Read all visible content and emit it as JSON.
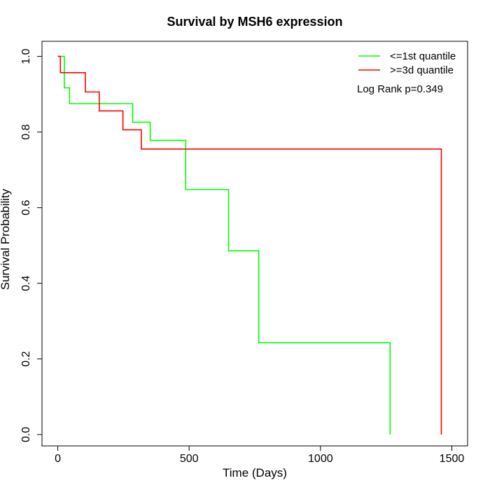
{
  "chart_data": {
    "type": "line",
    "title": "Survival by MSH6 expression",
    "xlabel": "Time (Days)",
    "ylabel": "Survival Probability",
    "xlim": [
      -60,
      1560
    ],
    "ylim": [
      -0.03,
      1.04
    ],
    "xticks": [
      0,
      500,
      1000,
      1500
    ],
    "yticks": [
      0.0,
      0.2,
      0.4,
      0.6,
      0.8,
      1.0
    ],
    "xtick_labels": [
      "0",
      "500",
      "1000",
      "1500"
    ],
    "ytick_labels": [
      "0.0",
      "0.2",
      "0.4",
      "0.6",
      "0.8",
      "1.0"
    ],
    "grid": false,
    "legend_position": "top-right",
    "annotation": "Log Rank p=0.349",
    "series": [
      {
        "name": "<=1st quantile",
        "color": "#00ff00",
        "steps": [
          [
            0,
            1.0
          ],
          [
            25,
            0.917
          ],
          [
            45,
            0.875
          ],
          [
            285,
            0.826
          ],
          [
            352,
            0.778
          ],
          [
            487,
            0.648
          ],
          [
            650,
            0.486
          ],
          [
            765,
            0.243
          ],
          [
            1265,
            0.0
          ]
        ],
        "end_x": 1265
      },
      {
        "name": ">=3d quantile",
        "color": "#ff0000",
        "steps": [
          [
            0,
            1.0
          ],
          [
            10,
            0.957
          ],
          [
            105,
            0.906
          ],
          [
            158,
            0.856
          ],
          [
            248,
            0.806
          ],
          [
            318,
            0.755
          ],
          [
            1460,
            0.0
          ]
        ],
        "end_x": 1460
      }
    ]
  }
}
